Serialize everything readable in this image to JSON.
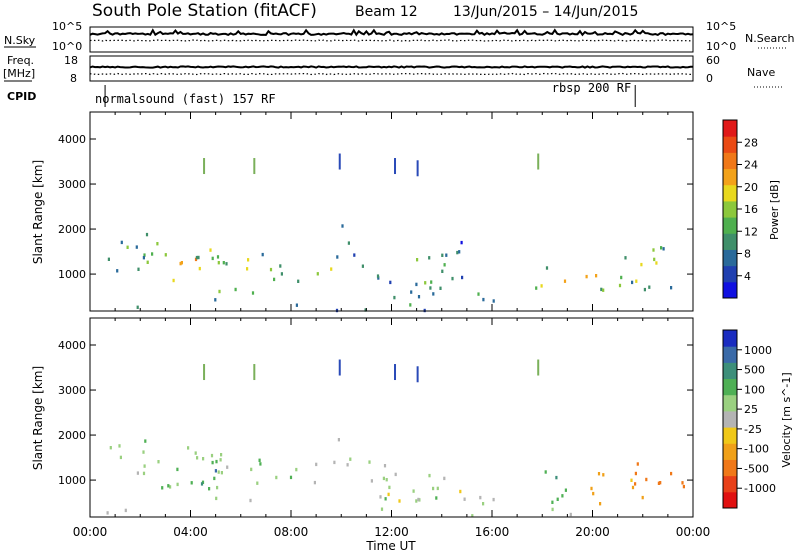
{
  "header": {
    "title": "South Pole Station (fitACF)",
    "beam": "Beam 12",
    "dates": "13/Jun/2015 – 14/Jun/2015"
  },
  "summary": {
    "nsky_label": "N.Sky",
    "nsearch_label": "N.Search",
    "freq_label": "Freq.",
    "freq_unit": "[MHz]",
    "nave_label": "Nave",
    "cpid_label": "CPID",
    "noise_tick_hi": "10^5",
    "noise_tick_lo": "10^0",
    "freq_ticks": [
      "18",
      "8"
    ],
    "nave_ticks": [
      "60",
      "0"
    ],
    "cpid_modes": [
      {
        "label": "normalsound (fast) 157 RF",
        "start_h": 0.6
      },
      {
        "label": "rbsp 200 RF",
        "start_h": 21.7
      }
    ]
  },
  "axes": {
    "x_ticks": [
      "00:00",
      "04:00",
      "08:00",
      "12:00",
      "16:00",
      "20:00",
      "00:00"
    ],
    "x_label": "Time UT",
    "y_label": "Slant Range [km]",
    "y_ticks": [
      "1000",
      "2000",
      "3000",
      "4000"
    ]
  },
  "colorbars": {
    "power": {
      "label": "Power [dB]",
      "ticks": [
        "4",
        "8",
        "12",
        "16",
        "20",
        "24",
        "28"
      ],
      "colors": [
        "#1010e0",
        "#2040b0",
        "#2a6a9a",
        "#3f8f6a",
        "#4fb04f",
        "#8cc83c",
        "#e8d81e",
        "#f3a21a",
        "#f07818",
        "#ea4a14",
        "#e01818"
      ]
    },
    "velocity": {
      "label": "Velocity [m s^-1]",
      "ticks": [
        "1000",
        "500",
        "100",
        "25",
        "-25",
        "-100",
        "-500",
        "-1000"
      ],
      "colors": [
        "#1a2cc0",
        "#3a6aa8",
        "#3d8f7a",
        "#4fb055",
        "#9ad080",
        "#b4b4b4",
        "#f0c818",
        "#f0a018",
        "#f07818",
        "#e84018",
        "#e01010"
      ]
    }
  },
  "chart_data": [
    {
      "type": "heatmap",
      "title": "Power",
      "xlabel": "Time UT",
      "ylabel": "Slant Range [km]",
      "xlim": [
        0,
        24
      ],
      "ylim": [
        180,
        4600
      ],
      "colorbar": "Power [dB]",
      "colorbar_range": [
        0,
        32
      ],
      "clusters": [
        {
          "t0": 0.6,
          "t1": 2.4,
          "r0": 900,
          "r1": 1900,
          "core": 16
        },
        {
          "t0": 2.0,
          "t1": 5.5,
          "r0": 700,
          "r1": 1900,
          "core": 26
        },
        {
          "t0": 4.0,
          "t1": 7.4,
          "r0": 900,
          "r1": 1650,
          "core": 20
        },
        {
          "t0": 4.4,
          "t1": 6.6,
          "r0": 400,
          "r1": 900,
          "core": 18
        },
        {
          "t0": 6.0,
          "t1": 8.5,
          "r0": 700,
          "r1": 1400,
          "core": 16
        },
        {
          "t0": 8.5,
          "t1": 9.8,
          "r0": 800,
          "r1": 1600,
          "core": 24
        },
        {
          "t0": 9.8,
          "t1": 10.6,
          "r0": 1300,
          "r1": 2300,
          "core": 10
        },
        {
          "t0": 10.8,
          "t1": 15.0,
          "r0": 400,
          "r1": 1700,
          "core": 16
        },
        {
          "t0": 11.8,
          "t1": 13.2,
          "r0": 400,
          "r1": 900,
          "core": 18
        },
        {
          "t0": 15.2,
          "t1": 17.0,
          "r0": 400,
          "r1": 1000,
          "core": 18
        },
        {
          "t0": 16.8,
          "t1": 21.6,
          "r0": 450,
          "r1": 1200,
          "core": 24
        },
        {
          "t0": 21.0,
          "t1": 24.0,
          "r0": 600,
          "r1": 1600,
          "core": 24
        },
        {
          "t0": 0.0,
          "t1": 24.0,
          "r0": 180,
          "r1": 400,
          "core": 14
        }
      ]
    },
    {
      "type": "heatmap",
      "title": "Velocity",
      "xlabel": "Time UT",
      "ylabel": "Slant Range [km]",
      "xlim": [
        0,
        24
      ],
      "ylim": [
        180,
        4600
      ],
      "colorbar": "Velocity [m s^-1]",
      "colorbar_range": [
        -1000,
        1000
      ],
      "clusters": [
        {
          "t0": 0.6,
          "t1": 2.4,
          "r0": 900,
          "r1": 1900,
          "core": 100
        },
        {
          "t0": 2.0,
          "t1": 5.5,
          "r0": 700,
          "r1": 1900,
          "core": 150
        },
        {
          "t0": 4.0,
          "t1": 5.0,
          "r0": 900,
          "r1": 1500,
          "core": 700
        },
        {
          "t0": 4.0,
          "t1": 7.4,
          "r0": 900,
          "r1": 1650,
          "core": 80
        },
        {
          "t0": 4.4,
          "t1": 6.6,
          "r0": 400,
          "r1": 900,
          "core": 100
        },
        {
          "t0": 6.0,
          "t1": 8.5,
          "r0": 700,
          "r1": 1400,
          "core": 60
        },
        {
          "t0": 8.5,
          "t1": 9.8,
          "r0": 800,
          "r1": 1600,
          "core": 60
        },
        {
          "t0": 9.8,
          "t1": 10.6,
          "r0": 1300,
          "r1": 2300,
          "core": 40
        },
        {
          "t0": 10.8,
          "t1": 15.0,
          "r0": 400,
          "r1": 1700,
          "core": 60
        },
        {
          "t0": 11.8,
          "t1": 13.2,
          "r0": 400,
          "r1": 900,
          "core": -60
        },
        {
          "t0": 15.2,
          "t1": 17.0,
          "r0": 400,
          "r1": 1000,
          "core": 80
        },
        {
          "t0": 16.8,
          "t1": 19.0,
          "r0": 450,
          "r1": 1200,
          "core": 300
        },
        {
          "t0": 19.0,
          "t1": 21.6,
          "r0": 450,
          "r1": 1200,
          "core": -200
        },
        {
          "t0": 21.0,
          "t1": 24.0,
          "r0": 600,
          "r1": 1600,
          "core": -400
        },
        {
          "t0": 0.0,
          "t1": 24.0,
          "r0": 180,
          "r1": 400,
          "core": 0
        }
      ]
    }
  ]
}
